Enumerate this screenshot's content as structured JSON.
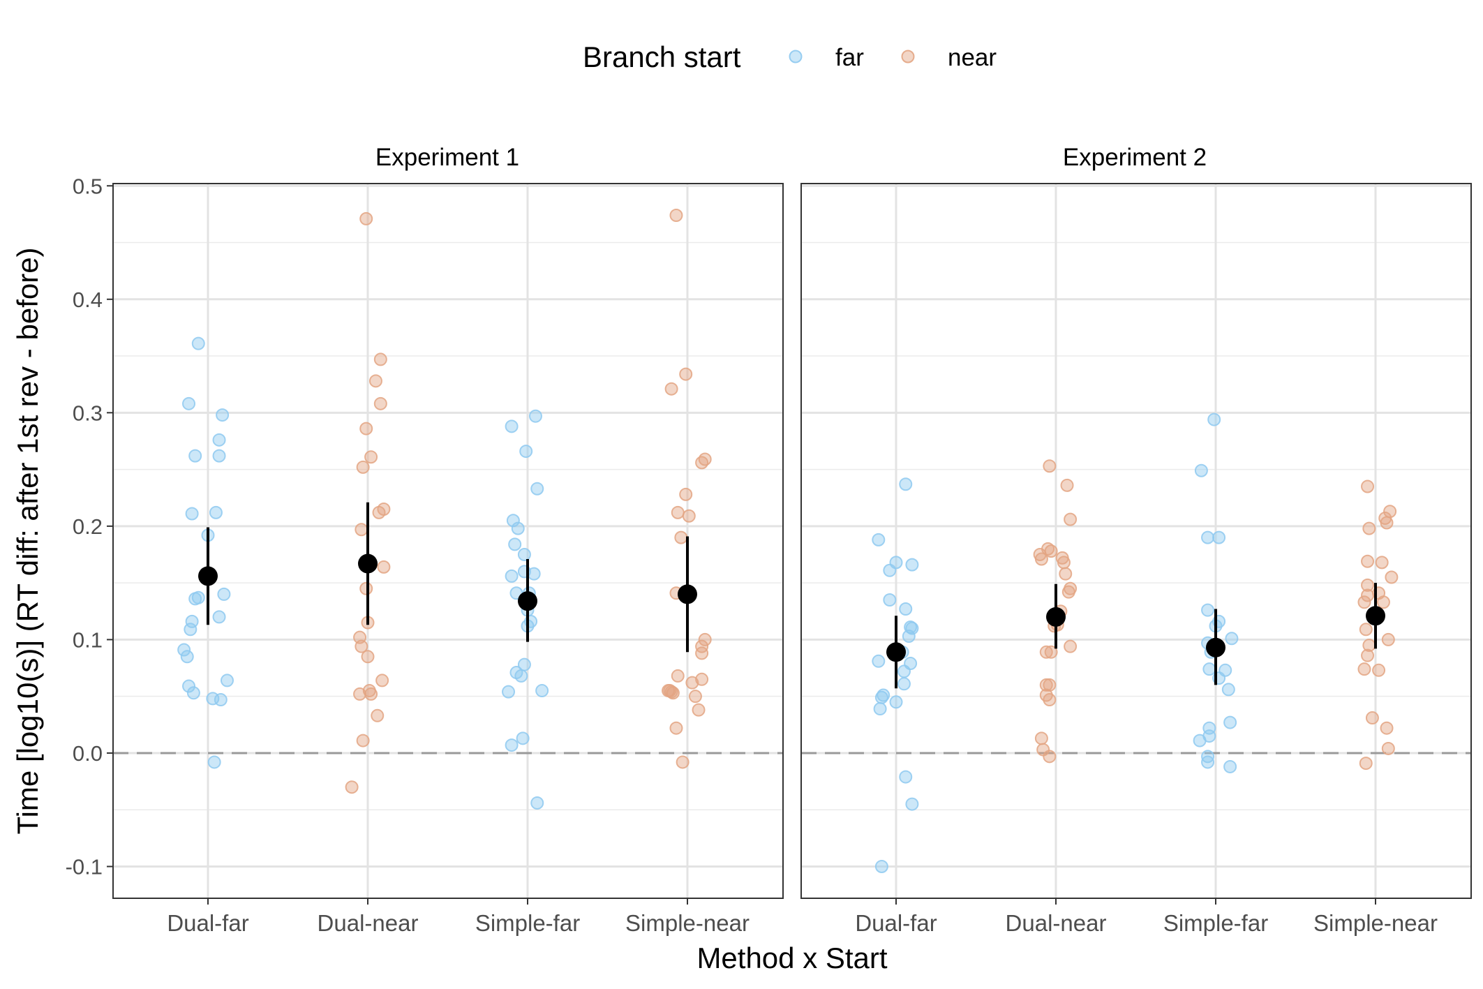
{
  "chart_data": {
    "type": "scatter",
    "xlabel": "Method x Start",
    "ylabel": "Time [log10(s)] (RT diff: after 1st rev - before)",
    "ylim": [
      -0.128,
      0.502
    ],
    "yticks": [
      -0.1,
      0.0,
      0.1,
      0.2,
      0.3,
      0.4,
      0.5
    ],
    "ytick_labels": [
      "-0.1",
      "0.0",
      "0.1",
      "0.2",
      "0.3",
      "0.4",
      "0.5"
    ],
    "categories": [
      "Dual-far",
      "Dual-near",
      "Simple-far",
      "Simple-near"
    ],
    "reference_line": 0.0,
    "grid": true,
    "legend": {
      "title": "Branch start",
      "position": "top",
      "entries": [
        {
          "label": "far",
          "color": "#8ec9f0"
        },
        {
          "label": "near",
          "color": "#e3a583"
        }
      ]
    },
    "colors": {
      "far": "#8ec9f0",
      "near": "#e3a583",
      "summary": "#000000",
      "zero_line": "#999999"
    },
    "panels": [
      {
        "title": "Experiment 1",
        "groups": [
          {
            "category": "Dual-far",
            "start": "far",
            "mean": 0.156,
            "ci": [
              0.113,
              0.199
            ],
            "points": [
              [
                -0.06,
                0.361
              ],
              [
                -0.12,
                0.308
              ],
              [
                0.09,
                0.298
              ],
              [
                -0.08,
                0.262
              ],
              [
                0.07,
                0.262
              ],
              [
                0.07,
                0.276
              ],
              [
                -0.1,
                0.211
              ],
              [
                0.05,
                0.212
              ],
              [
                0.0,
                0.192
              ],
              [
                -0.08,
                0.136
              ],
              [
                -0.06,
                0.137
              ],
              [
                0.1,
                0.14
              ],
              [
                0.07,
                0.12
              ],
              [
                -0.1,
                0.116
              ],
              [
                -0.11,
                0.109
              ],
              [
                -0.15,
                0.091
              ],
              [
                -0.13,
                0.085
              ],
              [
                -0.12,
                0.059
              ],
              [
                -0.09,
                0.053
              ],
              [
                0.12,
                0.064
              ],
              [
                0.03,
                0.048
              ],
              [
                0.08,
                0.047
              ],
              [
                0.04,
                -0.008
              ]
            ]
          },
          {
            "category": "Dual-near",
            "start": "near",
            "mean": 0.167,
            "ci": [
              0.113,
              0.221
            ],
            "points": [
              [
                -0.01,
                0.471
              ],
              [
                0.08,
                0.347
              ],
              [
                0.05,
                0.328
              ],
              [
                0.08,
                0.308
              ],
              [
                -0.01,
                0.286
              ],
              [
                0.02,
                0.261
              ],
              [
                -0.03,
                0.252
              ],
              [
                0.1,
                0.215
              ],
              [
                0.07,
                0.212
              ],
              [
                -0.04,
                0.197
              ],
              [
                0.1,
                0.164
              ],
              [
                -0.01,
                0.145
              ],
              [
                0.0,
                0.115
              ],
              [
                -0.05,
                0.102
              ],
              [
                -0.04,
                0.094
              ],
              [
                0.0,
                0.085
              ],
              [
                0.09,
                0.064
              ],
              [
                0.01,
                0.055
              ],
              [
                -0.05,
                0.052
              ],
              [
                0.02,
                0.052
              ],
              [
                0.06,
                0.033
              ],
              [
                -0.03,
                0.011
              ],
              [
                -0.1,
                -0.03
              ]
            ]
          },
          {
            "category": "Simple-far",
            "start": "far",
            "mean": 0.134,
            "ci": [
              0.098,
              0.171
            ],
            "points": [
              [
                0.05,
                0.297
              ],
              [
                -0.1,
                0.288
              ],
              [
                -0.01,
                0.266
              ],
              [
                0.06,
                0.233
              ],
              [
                -0.09,
                0.205
              ],
              [
                -0.06,
                0.198
              ],
              [
                -0.08,
                0.184
              ],
              [
                -0.02,
                0.175
              ],
              [
                -0.1,
                0.156
              ],
              [
                0.04,
                0.158
              ],
              [
                -0.02,
                0.16
              ],
              [
                -0.07,
                0.141
              ],
              [
                0.01,
                0.141
              ],
              [
                0.0,
                0.126
              ],
              [
                0.02,
                0.116
              ],
              [
                0.0,
                0.112
              ],
              [
                -0.02,
                0.078
              ],
              [
                -0.07,
                0.071
              ],
              [
                -0.04,
                0.068
              ],
              [
                -0.12,
                0.054
              ],
              [
                0.09,
                0.055
              ],
              [
                -0.03,
                0.013
              ],
              [
                -0.1,
                0.007
              ],
              [
                0.06,
                -0.044
              ]
            ]
          },
          {
            "category": "Simple-near",
            "start": "near",
            "mean": 0.14,
            "ci": [
              0.089,
              0.191
            ],
            "points": [
              [
                -0.07,
                0.474
              ],
              [
                -0.01,
                0.334
              ],
              [
                -0.1,
                0.321
              ],
              [
                0.11,
                0.259
              ],
              [
                0.09,
                0.256
              ],
              [
                -0.01,
                0.228
              ],
              [
                -0.06,
                0.212
              ],
              [
                0.01,
                0.209
              ],
              [
                -0.04,
                0.19
              ],
              [
                -0.07,
                0.141
              ],
              [
                0.11,
                0.1
              ],
              [
                0.09,
                0.094
              ],
              [
                0.09,
                0.088
              ],
              [
                -0.06,
                0.068
              ],
              [
                0.09,
                0.065
              ],
              [
                0.03,
                0.062
              ],
              [
                -0.12,
                0.055
              ],
              [
                -0.11,
                0.055
              ],
              [
                -0.09,
                0.053
              ],
              [
                -0.1,
                0.054
              ],
              [
                0.05,
                0.05
              ],
              [
                0.07,
                0.038
              ],
              [
                -0.07,
                0.022
              ],
              [
                -0.03,
                -0.008
              ]
            ]
          }
        ]
      },
      {
        "title": "Experiment 2",
        "groups": [
          {
            "category": "Dual-far",
            "start": "far",
            "mean": 0.089,
            "ci": [
              0.057,
              0.121
            ],
            "points": [
              [
                0.06,
                0.237
              ],
              [
                -0.11,
                0.188
              ],
              [
                0.1,
                0.166
              ],
              [
                0.0,
                0.168
              ],
              [
                -0.04,
                0.161
              ],
              [
                -0.04,
                0.135
              ],
              [
                0.06,
                0.127
              ],
              [
                0.1,
                0.11
              ],
              [
                0.09,
                0.111
              ],
              [
                0.08,
                0.103
              ],
              [
                0.04,
                0.089
              ],
              [
                -0.11,
                0.081
              ],
              [
                0.09,
                0.079
              ],
              [
                0.05,
                0.072
              ],
              [
                0.05,
                0.061
              ],
              [
                -0.08,
                0.051
              ],
              [
                -0.09,
                0.049
              ],
              [
                0.0,
                0.045
              ],
              [
                -0.1,
                0.039
              ],
              [
                0.06,
                -0.021
              ],
              [
                0.1,
                -0.045
              ],
              [
                -0.09,
                -0.1
              ]
            ]
          },
          {
            "category": "Dual-near",
            "start": "near",
            "mean": 0.12,
            "ci": [
              0.092,
              0.149
            ],
            "points": [
              [
                -0.04,
                0.253
              ],
              [
                0.07,
                0.236
              ],
              [
                0.09,
                0.206
              ],
              [
                -0.1,
                0.175
              ],
              [
                -0.09,
                0.171
              ],
              [
                -0.05,
                0.18
              ],
              [
                -0.03,
                0.178
              ],
              [
                0.04,
                0.172
              ],
              [
                0.05,
                0.168
              ],
              [
                0.06,
                0.158
              ],
              [
                0.09,
                0.145
              ],
              [
                0.08,
                0.142
              ],
              [
                -0.01,
                0.121
              ],
              [
                0.03,
                0.125
              ],
              [
                0.01,
                0.113
              ],
              [
                -0.01,
                0.112
              ],
              [
                0.09,
                0.094
              ],
              [
                -0.06,
                0.089
              ],
              [
                -0.03,
                0.089
              ],
              [
                -0.06,
                0.06
              ],
              [
                -0.04,
                0.06
              ],
              [
                -0.06,
                0.051
              ],
              [
                -0.04,
                0.047
              ],
              [
                -0.09,
                0.013
              ],
              [
                -0.08,
                0.003
              ],
              [
                -0.04,
                -0.003
              ]
            ]
          },
          {
            "category": "Simple-far",
            "start": "far",
            "mean": 0.093,
            "ci": [
              0.06,
              0.127
            ],
            "points": [
              [
                -0.01,
                0.294
              ],
              [
                -0.09,
                0.249
              ],
              [
                -0.05,
                0.19
              ],
              [
                0.02,
                0.19
              ],
              [
                -0.05,
                0.126
              ],
              [
                0.0,
                0.112
              ],
              [
                0.02,
                0.116
              ],
              [
                0.1,
                0.101
              ],
              [
                -0.05,
                0.097
              ],
              [
                -0.02,
                0.093
              ],
              [
                -0.03,
                0.089
              ],
              [
                -0.04,
                0.074
              ],
              [
                0.06,
                0.073
              ],
              [
                0.02,
                0.066
              ],
              [
                0.08,
                0.056
              ],
              [
                -0.04,
                0.022
              ],
              [
                0.09,
                0.027
              ],
              [
                -0.04,
                0.015
              ],
              [
                -0.1,
                0.011
              ],
              [
                -0.05,
                -0.003
              ],
              [
                -0.05,
                -0.008
              ],
              [
                0.09,
                -0.012
              ]
            ]
          },
          {
            "category": "Simple-near",
            "start": "near",
            "mean": 0.121,
            "ci": [
              0.092,
              0.15
            ],
            "points": [
              [
                -0.05,
                0.235
              ],
              [
                0.09,
                0.213
              ],
              [
                0.06,
                0.207
              ],
              [
                0.07,
                0.203
              ],
              [
                -0.04,
                0.198
              ],
              [
                -0.05,
                0.169
              ],
              [
                0.04,
                0.168
              ],
              [
                0.1,
                0.155
              ],
              [
                -0.05,
                0.148
              ],
              [
                0.02,
                0.141
              ],
              [
                -0.05,
                0.139
              ],
              [
                0.05,
                0.133
              ],
              [
                -0.07,
                0.133
              ],
              [
                -0.06,
                0.109
              ],
              [
                0.08,
                0.1
              ],
              [
                -0.04,
                0.095
              ],
              [
                -0.05,
                0.086
              ],
              [
                0.02,
                0.073
              ],
              [
                -0.07,
                0.074
              ],
              [
                -0.02,
                0.031
              ],
              [
                0.07,
                0.022
              ],
              [
                0.08,
                0.004
              ],
              [
                -0.06,
                -0.009
              ]
            ]
          }
        ]
      }
    ]
  }
}
